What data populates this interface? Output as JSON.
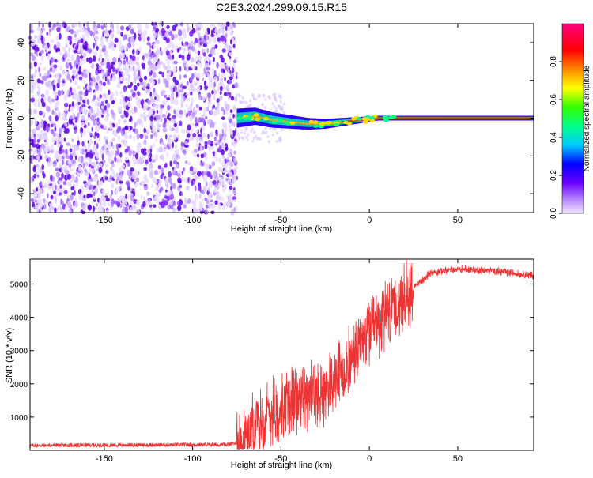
{
  "figure": {
    "title": "C2E3.2024.299.09.15.R15"
  },
  "chart_data": [
    {
      "type": "heatmap",
      "title": "",
      "xlabel": "Height of straight line (km)",
      "ylabel": "Frequency (Hz)",
      "xlim": [
        -192,
        93
      ],
      "ylim": [
        -50,
        50
      ],
      "xticks": [
        -150,
        -100,
        -50,
        0,
        50
      ],
      "yticks": [
        -40,
        -20,
        0,
        20,
        40
      ],
      "noise_region_x": [
        -192,
        -75
      ],
      "line_start_x": -75,
      "ridge": {
        "x": [
          -75,
          -65,
          -55,
          -45,
          -35,
          -25,
          -15,
          -5,
          5,
          15,
          30,
          50,
          70,
          93
        ],
        "y": [
          0,
          1,
          -1,
          -2,
          -3,
          -3,
          -2,
          -1,
          0,
          0,
          0,
          0,
          0,
          0
        ]
      },
      "colorbar": {
        "label": "Normalized spectral amplitude",
        "range": [
          0,
          1
        ],
        "ticks": [
          0.0,
          0.2,
          0.4,
          0.6,
          0.8
        ]
      },
      "grid": false
    },
    {
      "type": "line",
      "title": "",
      "xlabel": "Height of straight line (km)",
      "ylabel": "SNR (10 * v/v)",
      "xlim": [
        -192,
        93
      ],
      "ylim": [
        0,
        5750
      ],
      "xticks": [
        -150,
        -100,
        -50,
        0,
        50
      ],
      "yticks": [
        1000,
        2000,
        3000,
        4000,
        5000
      ],
      "series_color": "#ee3333",
      "trend": {
        "x": [
          -192,
          -80,
          -74,
          -65,
          -55,
          -45,
          -35,
          -25,
          -15,
          -5,
          5,
          15,
          25,
          35,
          50,
          70,
          93
        ],
        "y": [
          150,
          170,
          250,
          700,
          1200,
          1500,
          1600,
          1800,
          2400,
          3200,
          3800,
          4300,
          4900,
          5350,
          5450,
          5400,
          5250
        ]
      },
      "grid": false
    }
  ]
}
